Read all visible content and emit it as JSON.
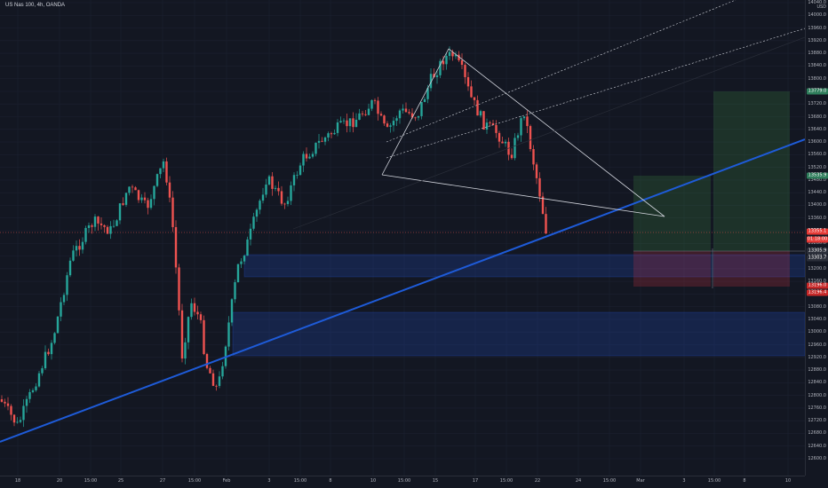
{
  "header": {
    "title": "US Nas 100, 4h, OANDA"
  },
  "price_axis": {
    "currency": "USD",
    "labels": [
      "14040.0",
      "14000.0",
      "13960.0",
      "13920.0",
      "13880.0",
      "13840.0",
      "13800.0",
      "13760.0",
      "13720.0",
      "13680.0",
      "13640.0",
      "13600.0",
      "13560.0",
      "13520.0",
      "13480.0",
      "13440.0",
      "13400.0",
      "13360.0",
      "13320.0",
      "13280.0",
      "13240.0",
      "13200.0",
      "13160.0",
      "13120.0",
      "13080.0",
      "13040.0",
      "13000.0",
      "12960.0",
      "12920.0",
      "12880.0",
      "12840.0",
      "12800.0",
      "12760.0",
      "12720.0",
      "12680.0",
      "12640.0",
      "12600.0"
    ],
    "tags": [
      {
        "name": "target-price-tag",
        "text": "13779.0",
        "color": "#2e7d5b"
      },
      {
        "name": "entry-price-tag",
        "text": "13535.9",
        "color": "#2e7d5b"
      },
      {
        "name": "last-price-tag",
        "text": "13355.1",
        "color": "#e53935"
      },
      {
        "name": "countdown-tag",
        "text": "01:18:00",
        "color": "#e53935"
      },
      {
        "name": "bid-price-tag",
        "text": "13305.9",
        "color": "#2a2e39"
      },
      {
        "name": "ask-price-tag",
        "text": "13303.7",
        "color": "#2a2e39"
      },
      {
        "name": "stop-price-tag-1",
        "text": "13196.0",
        "color": "#c62828"
      },
      {
        "name": "stop-price-tag-2",
        "text": "13196.4",
        "color": "#c62828"
      }
    ]
  },
  "time_axis": {
    "labels": [
      "18",
      "20",
      "15:00",
      "25",
      "27",
      "15:00",
      "Feb",
      "3",
      "15:00",
      "8",
      "10",
      "15:00",
      "15",
      "17",
      "15:00",
      "22",
      "24",
      "15:00",
      "Mar",
      "3",
      "15:00",
      "8",
      "10"
    ]
  },
  "colors": {
    "background": "#131722",
    "bull": "#26a69a",
    "bear": "#ef5350",
    "trendline": "#1e5bd8",
    "zone": "#2962ff",
    "profit": "#4caf50",
    "loss": "#f23645"
  }
}
